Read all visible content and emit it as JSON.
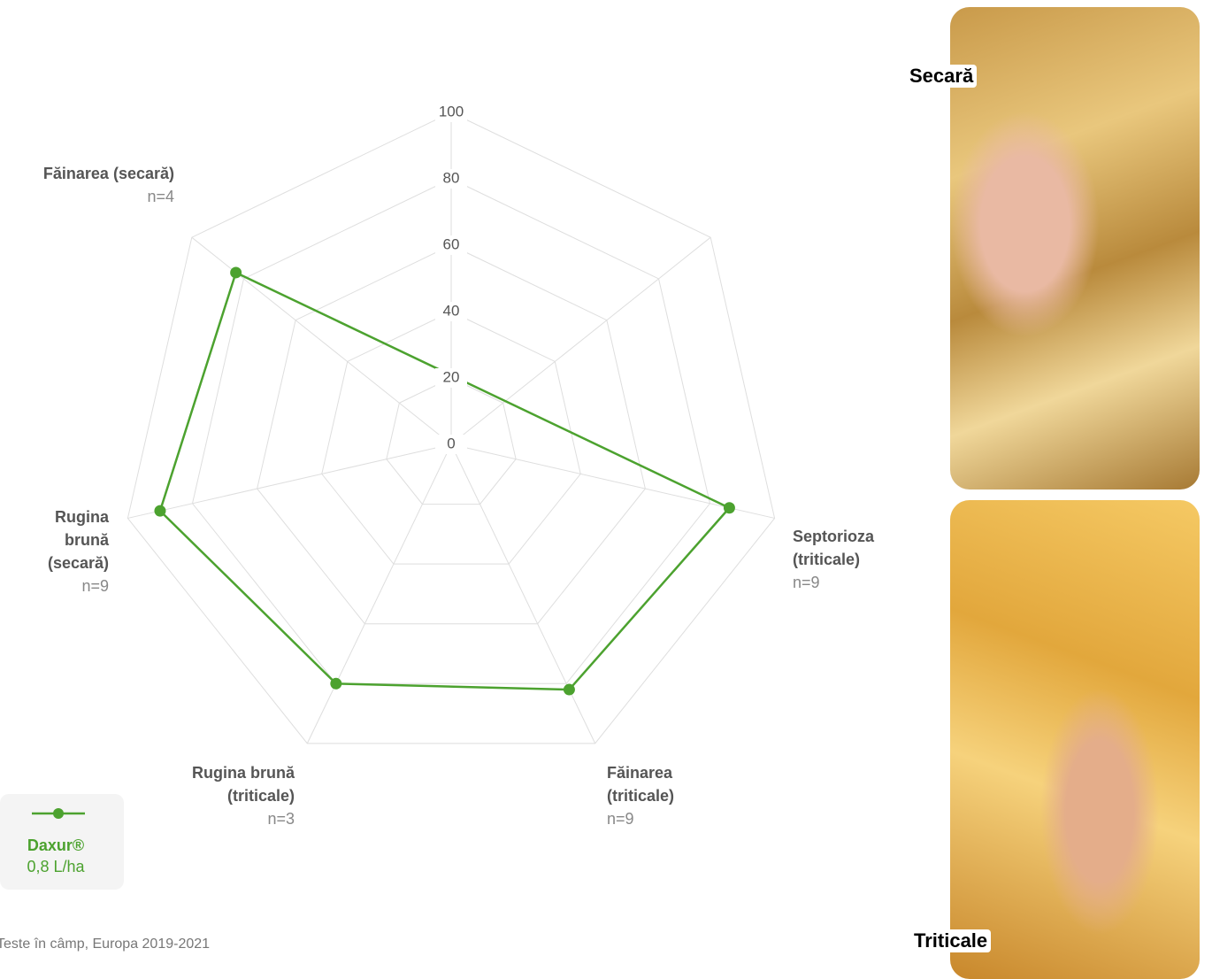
{
  "chart_data": {
    "type": "radar",
    "categories": [
      null,
      null,
      "Septorioza (triticale)",
      "Făinarea (triticale)",
      "Rugina brună (triticale)",
      "Rugina brună (secară)",
      "Făinarea (secară)"
    ],
    "n_labels": [
      null,
      null,
      "n=9",
      "n=9",
      "n=3",
      "n=9",
      "n=4"
    ],
    "series": [
      {
        "name": "Daxur®",
        "dose": "0,8 L/ha",
        "color": "#4ca22f",
        "values": [
          null,
          null,
          86,
          82,
          80,
          90,
          83
        ]
      }
    ],
    "ylim": [
      0,
      100
    ],
    "yticks": [
      0,
      20,
      40,
      60,
      80,
      100
    ],
    "grid": true,
    "footnote": "Teste în câmp, Europa 2019-2021"
  },
  "photos": [
    {
      "label": "Secară"
    },
    {
      "label": "Triticale"
    }
  ]
}
